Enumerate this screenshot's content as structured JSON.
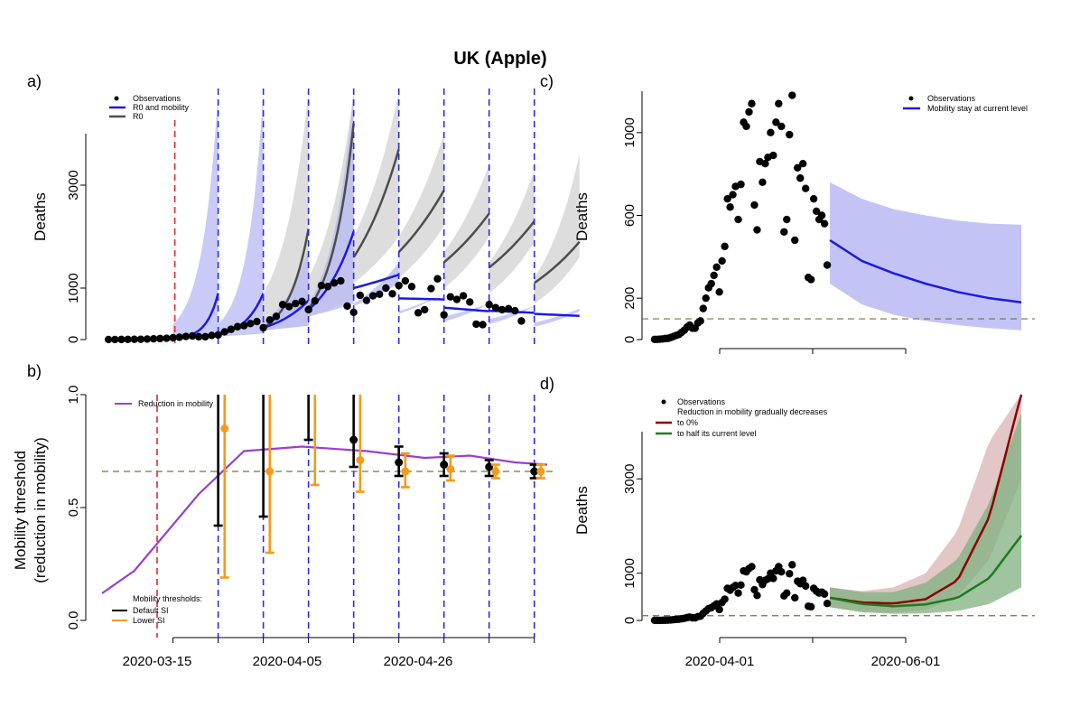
{
  "title": "UK (Apple)",
  "colors": {
    "blue": "#1a1ae6",
    "blue_band": "#b8b8f5",
    "grey": "#4d4d4d",
    "grey_band": "#d9d9d9",
    "red_dash": "#e0282d",
    "blue_dash": "#2a2ae8",
    "olive_dash": "#6b7a3a",
    "purple": "#9a3fcf",
    "orange": "#f59a1a",
    "darkred": "#8b0000",
    "darkred_band": "#e0c0c0",
    "green": "#1f7a1f",
    "green_band": "#7fb07f"
  },
  "panels": {
    "a": {
      "label": "a)",
      "ylabel": "Deaths",
      "yticks": [
        "0",
        "1000",
        "3000"
      ],
      "legend": [
        "Observations",
        "R0 and mobility",
        "R0"
      ]
    },
    "b": {
      "label": "b)",
      "ylabel1": "Mobility threshold",
      "ylabel2": "(reduction in mobility)",
      "yticks": [
        "0.0",
        "0.5",
        "1.0"
      ],
      "xticks": [
        "2020-03-15",
        "2020-04-05",
        "2020-04-26"
      ],
      "legend_line": "Reduction in mobility",
      "legend_title": "Mobility thresholds:",
      "legend_items": [
        "Default SI",
        "Lower SI"
      ]
    },
    "c": {
      "label": "c)",
      "ylabel": "Deaths",
      "yticks": [
        "0",
        "200",
        "600",
        "1000"
      ],
      "legend": [
        "Observations",
        "Mobility stay at current level"
      ]
    },
    "d": {
      "label": "d)",
      "ylabel": "Deaths",
      "yticks": [
        "0",
        "1000",
        "3000"
      ],
      "xticks": [
        "2020-04-01",
        "2020-06-01"
      ],
      "legend": [
        "Observations",
        "Reduction in mobility gradually decreases",
        "to 0%",
        "to half its current level"
      ]
    }
  },
  "chart_data": [
    {
      "panel": "a",
      "type": "line",
      "ylabel": "Deaths",
      "ylim": [
        0,
        4800
      ],
      "x_range": [
        "2020-03-05",
        "2020-05-13"
      ],
      "intervention_dates_red": [
        "2020-03-23"
      ],
      "refit_dates_blue": [
        "2020-03-23",
        "2020-03-30",
        "2020-04-06",
        "2020-04-13",
        "2020-04-20",
        "2020-04-27",
        "2020-05-04",
        "2020-05-11"
      ],
      "observations": [
        {
          "x": "2020-03-06",
          "y": 1
        },
        {
          "x": "2020-03-07",
          "y": 1
        },
        {
          "x": "2020-03-08",
          "y": 2
        },
        {
          "x": "2020-03-09",
          "y": 3
        },
        {
          "x": "2020-03-10",
          "y": 5
        },
        {
          "x": "2020-03-11",
          "y": 6
        },
        {
          "x": "2020-03-12",
          "y": 10
        },
        {
          "x": "2020-03-13",
          "y": 15
        },
        {
          "x": "2020-03-14",
          "y": 20
        },
        {
          "x": "2020-03-15",
          "y": 25
        },
        {
          "x": "2020-03-16",
          "y": 35
        },
        {
          "x": "2020-03-17",
          "y": 45
        },
        {
          "x": "2020-03-18",
          "y": 60
        },
        {
          "x": "2020-03-19",
          "y": 70
        },
        {
          "x": "2020-03-20",
          "y": 55
        },
        {
          "x": "2020-03-21",
          "y": 55
        },
        {
          "x": "2020-03-22",
          "y": 80
        },
        {
          "x": "2020-03-23",
          "y": 90
        },
        {
          "x": "2020-03-24",
          "y": 150
        },
        {
          "x": "2020-03-25",
          "y": 200
        },
        {
          "x": "2020-03-26",
          "y": 250
        },
        {
          "x": "2020-03-27",
          "y": 270
        },
        {
          "x": "2020-03-28",
          "y": 310
        },
        {
          "x": "2020-03-29",
          "y": 350
        },
        {
          "x": "2020-03-30",
          "y": 230
        },
        {
          "x": "2020-03-31",
          "y": 380
        },
        {
          "x": "2020-04-01",
          "y": 450
        },
        {
          "x": "2020-04-02",
          "y": 680
        },
        {
          "x": "2020-04-03",
          "y": 640
        },
        {
          "x": "2020-04-04",
          "y": 700
        },
        {
          "x": "2020-04-05",
          "y": 740
        },
        {
          "x": "2020-04-06",
          "y": 580
        },
        {
          "x": "2020-04-07",
          "y": 750
        },
        {
          "x": "2020-04-08",
          "y": 1050
        },
        {
          "x": "2020-04-09",
          "y": 1030
        },
        {
          "x": "2020-04-10",
          "y": 1100
        },
        {
          "x": "2020-04-11",
          "y": 1140
        },
        {
          "x": "2020-04-12",
          "y": 650
        },
        {
          "x": "2020-04-13",
          "y": 530
        },
        {
          "x": "2020-04-14",
          "y": 860
        },
        {
          "x": "2020-04-15",
          "y": 760
        },
        {
          "x": "2020-04-16",
          "y": 850
        },
        {
          "x": "2020-04-17",
          "y": 880
        },
        {
          "x": "2020-04-18",
          "y": 1000
        },
        {
          "x": "2020-04-19",
          "y": 890
        },
        {
          "x": "2020-04-20",
          "y": 1050
        },
        {
          "x": "2020-04-21",
          "y": 1140
        },
        {
          "x": "2020-04-22",
          "y": 1030
        },
        {
          "x": "2020-04-23",
          "y": 520
        },
        {
          "x": "2020-04-24",
          "y": 580
        },
        {
          "x": "2020-04-25",
          "y": 990
        },
        {
          "x": "2020-04-26",
          "y": 1180
        },
        {
          "x": "2020-04-27",
          "y": 480
        },
        {
          "x": "2020-04-28",
          "y": 830
        },
        {
          "x": "2020-04-29",
          "y": 780
        },
        {
          "x": "2020-04-30",
          "y": 850
        },
        {
          "x": "2020-05-01",
          "y": 730
        },
        {
          "x": "2020-05-02",
          "y": 300
        },
        {
          "x": "2020-05-03",
          "y": 290
        },
        {
          "x": "2020-05-04",
          "y": 680
        },
        {
          "x": "2020-05-05",
          "y": 620
        },
        {
          "x": "2020-05-06",
          "y": 580
        },
        {
          "x": "2020-05-07",
          "y": 600
        },
        {
          "x": "2020-05-08",
          "y": 560
        },
        {
          "x": "2020-05-09",
          "y": 360
        }
      ],
      "forecasts": [
        {
          "start": "2020-03-16",
          "end": "2020-03-23",
          "r0_mob": [
            20,
            900
          ],
          "band_mob": [
            [
              10,
              40
            ],
            [
              300,
              4800
            ]
          ]
        },
        {
          "start": "2020-03-23",
          "end": "2020-03-30",
          "r0_mob": [
            90,
            900
          ],
          "band_mob": [
            [
              60,
              120
            ],
            [
              300,
              4800
            ]
          ]
        },
        {
          "start": "2020-03-30",
          "end": "2020-04-06",
          "r0_mob": [
            230,
            760
          ],
          "band_mob": [
            [
              180,
              270
            ],
            [
              350,
              1800
            ]
          ],
          "r0": [
            230,
            2150
          ],
          "band_r0": [
            [
              180,
              270
            ],
            [
              900,
              4800
            ]
          ]
        },
        {
          "start": "2020-04-06",
          "end": "2020-04-13",
          "r0_mob": [
            580,
            2100
          ],
          "band_mob": [
            [
              450,
              700
            ],
            [
              700,
              4800
            ]
          ],
          "r0": [
            600,
            4200
          ],
          "band_r0": [
            [
              450,
              800
            ],
            [
              1200,
              4800
            ]
          ]
        },
        {
          "start": "2020-04-13",
          "end": "2020-04-20",
          "r0_mob": [
            1000,
            1260
          ],
          "band_mob": [
            [
              650,
              1100
            ],
            [
              700,
              1500
            ]
          ],
          "r0": [
            1600,
            3700
          ],
          "band_r0": [
            [
              1100,
              2000
            ],
            [
              2000,
              4800
            ]
          ]
        },
        {
          "start": "2020-04-20",
          "end": "2020-04-27",
          "r0_mob": [
            800,
            780
          ],
          "band_mob": [
            [
              550,
              900
            ],
            [
              500,
              900
            ]
          ],
          "r0": [
            1700,
            2900
          ],
          "band_r0": [
            [
              1200,
              2200
            ],
            [
              2000,
              4000
            ]
          ]
        },
        {
          "start": "2020-04-27",
          "end": "2020-05-04",
          "r0_mob": [
            620,
            550
          ],
          "band_mob": [
            [
              450,
              700
            ],
            [
              350,
              700
            ]
          ],
          "r0": [
            1500,
            2450
          ],
          "band_r0": [
            [
              1000,
              2000
            ],
            [
              1700,
              3400
            ]
          ]
        },
        {
          "start": "2020-05-04",
          "end": "2020-05-11",
          "r0_mob": [
            560,
            520
          ],
          "band_mob": [
            [
              400,
              650
            ],
            [
              300,
              650
            ]
          ],
          "r0": [
            1400,
            2300
          ],
          "band_r0": [
            [
              900,
              1900
            ],
            [
              1500,
              3300
            ]
          ]
        },
        {
          "start": "2020-05-11",
          "end": "2020-05-18",
          "r0_mob": [
            500,
            460
          ],
          "band_mob": [
            [
              330,
              600
            ],
            [
              250,
              550
            ]
          ],
          "r0": [
            1100,
            1900
          ],
          "band_r0": [
            [
              700,
              1600
            ],
            [
              1200,
              3600
            ]
          ]
        }
      ]
    },
    {
      "panel": "b",
      "type": "line",
      "ylabel": "Mobility threshold (reduction in mobility)",
      "ylim": [
        0,
        1
      ],
      "reduction_in_mobility": [
        {
          "x": "2020-03-05",
          "y": 0.12
        },
        {
          "x": "2020-03-10",
          "y": 0.22
        },
        {
          "x": "2020-03-20",
          "y": 0.56
        },
        {
          "x": "2020-03-27",
          "y": 0.75
        },
        {
          "x": "2020-04-05",
          "y": 0.77
        },
        {
          "x": "2020-04-15",
          "y": 0.75
        },
        {
          "x": "2020-04-24",
          "y": 0.72
        },
        {
          "x": "2020-05-01",
          "y": 0.73
        },
        {
          "x": "2020-05-08",
          "y": 0.7
        },
        {
          "x": "2020-05-13",
          "y": 0.69
        }
      ],
      "threshold_hline": 0.66,
      "thresholds_default_si": [
        {
          "x": "2020-03-23",
          "y": null,
          "lo": 0.42,
          "hi": 1.0
        },
        {
          "x": "2020-03-30",
          "y": null,
          "lo": 0.46,
          "hi": 1.0
        },
        {
          "x": "2020-04-06",
          "y": null,
          "lo": 0.8,
          "hi": 1.0
        },
        {
          "x": "2020-04-13",
          "y": 0.8,
          "lo": 0.68,
          "hi": 1.0
        },
        {
          "x": "2020-04-20",
          "y": 0.7,
          "lo": 0.64,
          "hi": 0.77
        },
        {
          "x": "2020-04-27",
          "y": 0.69,
          "lo": 0.64,
          "hi": 0.74
        },
        {
          "x": "2020-05-04",
          "y": 0.68,
          "lo": 0.64,
          "hi": 0.71
        },
        {
          "x": "2020-05-11",
          "y": 0.66,
          "lo": 0.63,
          "hi": 0.69
        }
      ],
      "thresholds_lower_si": [
        {
          "x": "2020-03-24",
          "y": 0.85,
          "lo": 0.19,
          "hi": 1.0
        },
        {
          "x": "2020-03-31",
          "y": 0.66,
          "lo": 0.3,
          "hi": 1.0
        },
        {
          "x": "2020-04-07",
          "y": null,
          "lo": 0.6,
          "hi": 1.0
        },
        {
          "x": "2020-04-14",
          "y": 0.71,
          "lo": 0.57,
          "hi": 1.0
        },
        {
          "x": "2020-04-21",
          "y": 0.66,
          "lo": 0.59,
          "hi": 0.74
        },
        {
          "x": "2020-04-28",
          "y": 0.67,
          "lo": 0.62,
          "hi": 0.73
        },
        {
          "x": "2020-05-05",
          "y": 0.66,
          "lo": 0.63,
          "hi": 0.69
        },
        {
          "x": "2020-05-12",
          "y": 0.66,
          "lo": 0.63,
          "hi": 0.69
        }
      ]
    },
    {
      "panel": "c",
      "type": "line",
      "ylabel": "Deaths",
      "ylim": [
        0,
        1200
      ],
      "x_range": [
        "2020-03-05",
        "2020-07-25"
      ],
      "threshold_hline": 100,
      "observations_same_as_panel_a": true,
      "forecast": {
        "start": "2020-05-10",
        "end": "2020-07-20",
        "median": [
          480,
          380,
          320,
          270,
          230,
          200,
          180
        ],
        "lower": [
          270,
          170,
          120,
          90,
          70,
          55,
          45
        ],
        "upper": [
          760,
          680,
          630,
          600,
          575,
          560,
          555
        ]
      }
    },
    {
      "panel": "d",
      "type": "line",
      "ylabel": "Deaths",
      "ylim": [
        0,
        4800
      ],
      "x_range": [
        "2020-03-05",
        "2020-07-25"
      ],
      "threshold_hline": 100,
      "observations_same_as_panel_a": true,
      "forecast_to_0pct": {
        "start": "2020-05-10",
        "end": "2020-07-20",
        "median": [
          480,
          380,
          360,
          450,
          850,
          2200,
          4800
        ],
        "lower": [
          280,
          200,
          170,
          220,
          500,
          1300,
          3000
        ],
        "upper": [
          700,
          620,
          700,
          1000,
          1900,
          3800,
          4800
        ]
      },
      "forecast_to_half": {
        "start": "2020-05-10",
        "end": "2020-07-20",
        "median": [
          480,
          350,
          300,
          340,
          480,
          900,
          1800
        ],
        "lower": [
          280,
          170,
          140,
          150,
          200,
          350,
          700
        ],
        "upper": [
          700,
          600,
          600,
          800,
          1300,
          2500,
          4400
        ]
      }
    }
  ]
}
